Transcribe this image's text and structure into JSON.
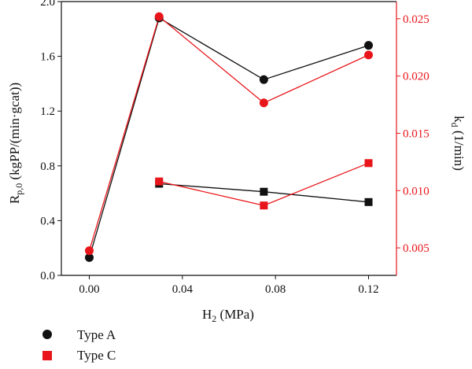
{
  "chart_data": {
    "type": "line",
    "x_axis": {
      "label": "H",
      "label_sub": "2",
      "label_rest": " (MPa)",
      "range": [
        -0.012,
        0.132
      ],
      "ticks": [
        0.0,
        0.04,
        0.08,
        0.12
      ],
      "tick_labels": [
        "0.00",
        "0.04",
        "0.08",
        "0.12"
      ]
    },
    "y_left": {
      "label": "R",
      "label_sub": "p,0",
      "label_rest": " (kgPP/(min·gcat))",
      "range": [
        0.0,
        2.0
      ],
      "ticks": [
        0.0,
        0.4,
        0.8,
        1.2,
        1.6,
        2.0
      ],
      "tick_labels": [
        "0.0",
        "0.4",
        "0.8",
        "1.2",
        "1.6",
        "2.0"
      ]
    },
    "y_right": {
      "label": "k",
      "label_sub": "d",
      "label_rest": " (1/min)",
      "range": [
        0.0026,
        0.0265
      ],
      "ticks": [
        0.005,
        0.01,
        0.015,
        0.02,
        0.025
      ],
      "tick_labels": [
        "0.005",
        "0.010",
        "0.015",
        "0.020",
        "0.025"
      ]
    },
    "series": [
      {
        "name": "Type A",
        "quantity": "Rp0",
        "axis": "left",
        "marker": "circle",
        "color": "#111111",
        "x": [
          0.0,
          0.03,
          0.075,
          0.12
        ],
        "y": [
          0.13,
          1.88,
          1.43,
          1.68
        ]
      },
      {
        "name": "Type C",
        "quantity": "Rp0",
        "axis": "left",
        "marker": "circle",
        "color": "#e8161b",
        "x": [
          0.0,
          0.03,
          0.075,
          0.12
        ],
        "y": [
          0.18,
          1.89,
          1.26,
          1.61
        ]
      },
      {
        "name": "Type A",
        "quantity": "kd",
        "axis": "right",
        "marker": "square",
        "color": "#111111",
        "x": [
          0.03,
          0.075,
          0.12
        ],
        "y": [
          0.0106,
          0.0099,
          0.009
        ]
      },
      {
        "name": "Type C",
        "quantity": "kd",
        "axis": "right",
        "marker": "square",
        "color": "#e8161b",
        "x": [
          0.03,
          0.075,
          0.12
        ],
        "y": [
          0.0108,
          0.0087,
          0.0124
        ]
      }
    ],
    "legend": {
      "placement": "bottom-left",
      "entries": [
        {
          "label": "Type A",
          "marker": "circle",
          "color": "#111111"
        },
        {
          "label": "Type C",
          "marker": "square",
          "color": "#e8161b"
        }
      ]
    },
    "colors": {
      "axis": "#111111",
      "right_axis": "#e8161b"
    },
    "grid": false
  }
}
